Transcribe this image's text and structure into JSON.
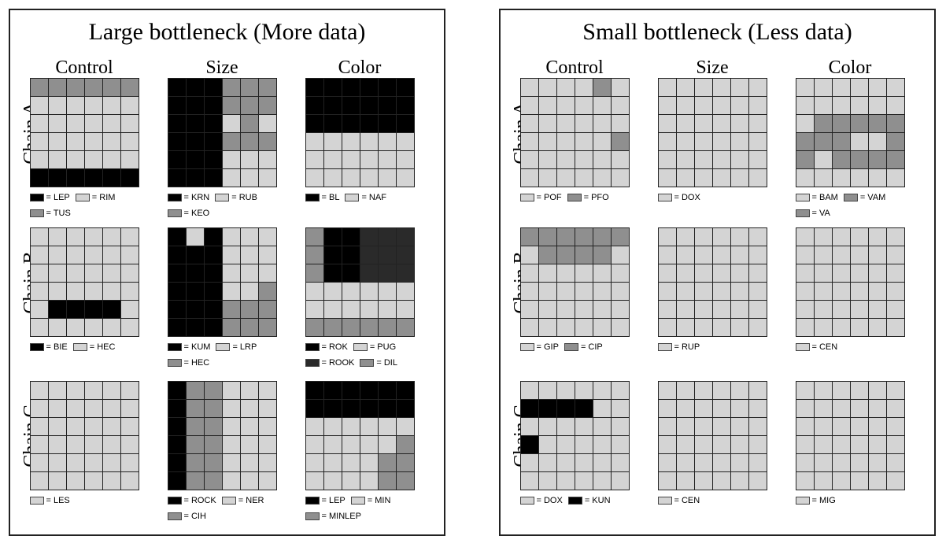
{
  "colors": {
    "light": "#d4d4d4",
    "mid": "#8f8f8f",
    "dark": "#2a2a2a",
    "black": "#000000"
  },
  "panels": [
    {
      "title": "Large bottleneck (More data)",
      "columns": [
        "Control",
        "Size",
        "Color"
      ],
      "rows": [
        "Chain A",
        "Chain B",
        "Chain C"
      ],
      "cells": [
        [
          {
            "grid": [
              "MMMMMM",
              "LLLLLL",
              "LLLLLL",
              "LLLLLL",
              "LLLLLL",
              "KKKKKK"
            ],
            "legend": [
              {
                "shade": "black",
                "label": "= LEP"
              },
              {
                "shade": "light",
                "label": "= RIM"
              },
              {
                "shade": "mid",
                "label": "= TUS"
              }
            ]
          },
          {
            "grid": [
              "KKKMMM",
              "KKKMMM",
              "KKKLML",
              "KKKMMM",
              "KKKLLL",
              "KKKLLL"
            ],
            "legend": [
              {
                "shade": "black",
                "label": "= KRN"
              },
              {
                "shade": "light",
                "label": "= RUB"
              },
              {
                "shade": "mid",
                "label": "= KEO"
              }
            ]
          },
          {
            "grid": [
              "KKKKKK",
              "KKKKKK",
              "KKKKKK",
              "LLLLLL",
              "LLLLLL",
              "LLLLLL"
            ],
            "legend": [
              {
                "shade": "black",
                "label": "= BL"
              },
              {
                "shade": "light",
                "label": "= NAF"
              }
            ]
          }
        ],
        [
          {
            "grid": [
              "LLLLLL",
              "LLLLLL",
              "LLLLLL",
              "LLLLLL",
              "LKKKKL",
              "LLLLLL"
            ],
            "legend": [
              {
                "shade": "black",
                "label": "= BIE"
              },
              {
                "shade": "light",
                "label": "= HEC"
              }
            ]
          },
          {
            "grid": [
              "KLKLLL",
              "KKKLLL",
              "KKKLLL",
              "KKKLLM",
              "KKKMMM",
              "KKKMMM"
            ],
            "legend": [
              {
                "shade": "black",
                "label": "= KUM"
              },
              {
                "shade": "light",
                "label": "= LRP"
              },
              {
                "shade": "mid",
                "label": "= HEC"
              }
            ]
          },
          {
            "grid": [
              "MKKDDD",
              "MKKDDD",
              "MKKDDD",
              "LLLLLL",
              "LLLLLL",
              "MMMMMM"
            ],
            "legend": [
              {
                "shade": "black",
                "label": "= ROK"
              },
              {
                "shade": "light",
                "label": "= PUG"
              },
              {
                "shade": "dark",
                "label": "= ROOK"
              },
              {
                "shade": "mid",
                "label": "= DIL"
              }
            ]
          }
        ],
        [
          {
            "grid": [
              "LLLLLL",
              "LLLLLL",
              "LLLLLL",
              "LLLLLL",
              "LLLLLL",
              "LLLLLL"
            ],
            "legend": [
              {
                "shade": "light",
                "label": "= LES"
              }
            ]
          },
          {
            "grid": [
              "KMMLLL",
              "KMMLLL",
              "KMMLLL",
              "KMMLLL",
              "KMMLLL",
              "KMMLLL"
            ],
            "legend": [
              {
                "shade": "black",
                "label": "= ROCK"
              },
              {
                "shade": "light",
                "label": "= NER"
              },
              {
                "shade": "mid",
                "label": "= CIH"
              }
            ]
          },
          {
            "grid": [
              "KKKKKK",
              "KKKKKK",
              "LLLLLL",
              "LLLLLM",
              "LLLLMM",
              "LLLLMM"
            ],
            "legend": [
              {
                "shade": "black",
                "label": "= LEP"
              },
              {
                "shade": "light",
                "label": "= MIN"
              },
              {
                "shade": "mid",
                "label": "= MINLEP"
              }
            ]
          }
        ]
      ]
    },
    {
      "title": "Small bottleneck (Less data)",
      "columns": [
        "Control",
        "Size",
        "Color"
      ],
      "rows": [
        "Chain A",
        "Chain B",
        "Chain C"
      ],
      "cells": [
        [
          {
            "grid": [
              "LLLLML",
              "LLLLLL",
              "LLLLLL",
              "LLLLLM",
              "LLLLLL",
              "LLLLLL"
            ],
            "legend": [
              {
                "shade": "light",
                "label": "= POF"
              },
              {
                "shade": "mid",
                "label": "= PFO"
              }
            ]
          },
          {
            "grid": [
              "LLLLLL",
              "LLLLLL",
              "LLLLLL",
              "LLLLLL",
              "LLLLLL",
              "LLLLLL"
            ],
            "legend": [
              {
                "shade": "light",
                "label": "= DOX"
              }
            ]
          },
          {
            "grid": [
              "LLLLLL",
              "LLLLLL",
              "LMMMMM",
              "MMMLLM",
              "MLMMMM",
              "LLLLLL"
            ],
            "legend": [
              {
                "shade": "light",
                "label": "= BAM"
              },
              {
                "shade": "mid",
                "label": "= VAM"
              },
              {
                "shade": "mid",
                "label": "= VA"
              }
            ]
          }
        ],
        [
          {
            "grid": [
              "MMMMMM",
              "LMMMML",
              "LLLLLL",
              "LLLLLL",
              "LLLLLL",
              "LLLLLL"
            ],
            "legend": [
              {
                "shade": "light",
                "label": "= GIP"
              },
              {
                "shade": "mid",
                "label": "= CIP"
              }
            ]
          },
          {
            "grid": [
              "LLLLLL",
              "LLLLLL",
              "LLLLLL",
              "LLLLLL",
              "LLLLLL",
              "LLLLLL"
            ],
            "legend": [
              {
                "shade": "light",
                "label": "= RUP"
              }
            ]
          },
          {
            "grid": [
              "LLLLLL",
              "LLLLLL",
              "LLLLLL",
              "LLLLLL",
              "LLLLLL",
              "LLLLLL"
            ],
            "legend": [
              {
                "shade": "light",
                "label": "= CEN"
              }
            ]
          }
        ],
        [
          {
            "grid": [
              "LLLLLL",
              "KKKKLL",
              "LLLLLL",
              "KLLLLL",
              "LLLLLL",
              "LLLLLL"
            ],
            "legend": [
              {
                "shade": "light",
                "label": "= DOX"
              },
              {
                "shade": "black",
                "label": "= KUN"
              }
            ]
          },
          {
            "grid": [
              "LLLLLL",
              "LLLLLL",
              "LLLLLL",
              "LLLLLL",
              "LLLLLL",
              "LLLLLL"
            ],
            "legend": [
              {
                "shade": "light",
                "label": "= CEN"
              }
            ]
          },
          {
            "grid": [
              "LLLLLL",
              "LLLLLL",
              "LLLLLL",
              "LLLLLL",
              "LLLLLL",
              "LLLLLL"
            ],
            "legend": [
              {
                "shade": "light",
                "label": "= MIG"
              }
            ]
          }
        ]
      ]
    }
  ]
}
